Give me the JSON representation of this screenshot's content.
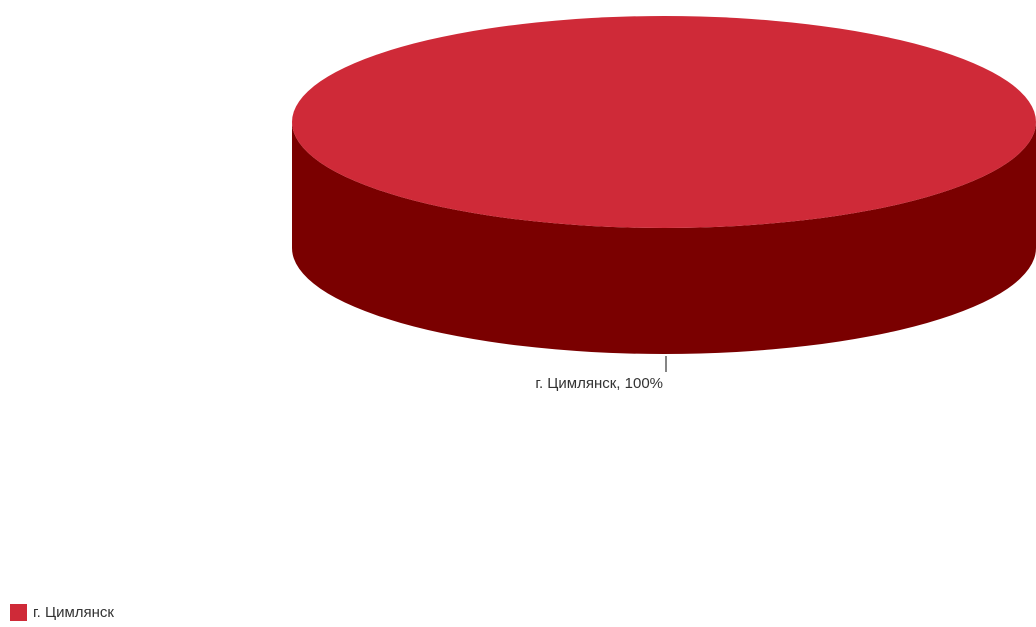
{
  "chart_data": {
    "type": "pie",
    "style": "3d",
    "slices": [
      {
        "label": "г. Цимлянск",
        "value": 100,
        "color": "#cf2a38",
        "side_color": "#7a0000"
      }
    ],
    "data_labels": [
      "г. Цимлянск, 100%"
    ],
    "legend": {
      "position": "bottom-left",
      "entries": [
        "г. Цимлянск"
      ]
    }
  }
}
